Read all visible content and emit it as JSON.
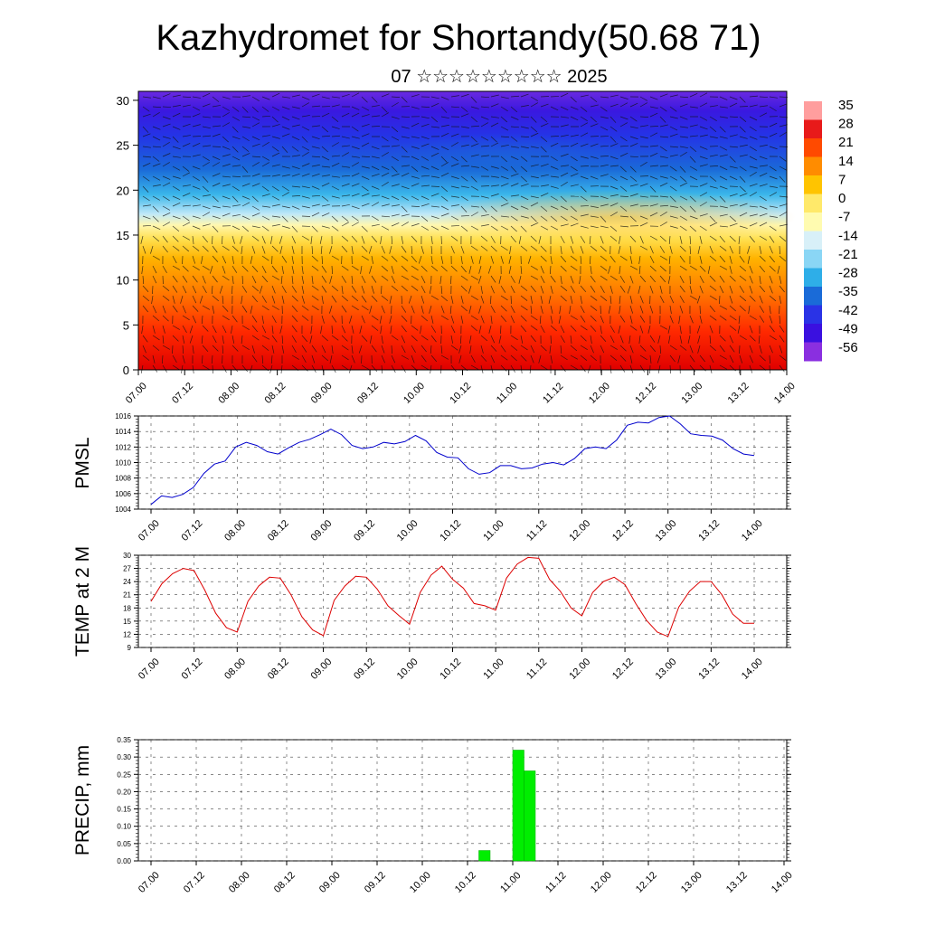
{
  "title": "Kazhydromet for Shortandy(50.68 71)",
  "subtitle": "07 ☆☆☆☆☆☆☆☆☆ 2025",
  "time_labels": [
    "07.00",
    "07.12",
    "08.00",
    "08.12",
    "09.00",
    "09.12",
    "10.00",
    "10.12",
    "11.00",
    "11.12",
    "12.00",
    "12.12",
    "13.00",
    "13.12",
    "14.00"
  ],
  "chart_data": [
    {
      "type": "heatmap",
      "name": "cross-section",
      "y_ticks": [
        "0",
        "5",
        "10",
        "15",
        "20",
        "25",
        "30"
      ],
      "ylim": [
        0,
        31
      ],
      "colorbar_labels": [
        "35",
        "28",
        "21",
        "14",
        "7",
        "0",
        "-7",
        "-14",
        "-21",
        "-28",
        "-35",
        "-42",
        "-49",
        "-56"
      ],
      "colorbar_colors": [
        "#ff9e9e",
        "#e81a1a",
        "#ff4a00",
        "#ff8c00",
        "#ffc400",
        "#ffe96a",
        "#fffbb0",
        "#d8f0f8",
        "#8ad6f5",
        "#2eaee8",
        "#1a6bd8",
        "#2a33e6",
        "#3a10e0",
        "#8a2fe0"
      ],
      "series_values_by_height": [
        {
          "height": 0,
          "temp": 30
        },
        {
          "height": 5,
          "temp": 25
        },
        {
          "height": 10,
          "temp": 12
        },
        {
          "height": 15,
          "temp": 2
        },
        {
          "height": 20,
          "temp": -28
        },
        {
          "height": 25,
          "temp": -50
        },
        {
          "height": 30,
          "temp": -60
        }
      ]
    },
    {
      "type": "line",
      "ylabel": "PMSL",
      "y_ticks": [
        "1004",
        "1006",
        "1008",
        "1010",
        "1012",
        "1014",
        "1016"
      ],
      "ylim": [
        1004,
        1016
      ],
      "color": "#0000cc",
      "values": [
        1004.6,
        1005.7,
        1005.5,
        1005.9,
        1006.8,
        1008.6,
        1009.8,
        1010.2,
        1012,
        1012.6,
        1012.2,
        1011.4,
        1011.1,
        1011.9,
        1012.6,
        1013,
        1013.6,
        1014.3,
        1013.6,
        1012.2,
        1011.8,
        1012,
        1012.6,
        1012.4,
        1012.7,
        1013.5,
        1012.8,
        1011.3,
        1010.7,
        1010.6,
        1009.2,
        1008.5,
        1008.7,
        1009.6,
        1009.6,
        1009.2,
        1009.3,
        1009.8,
        1010,
        1009.7,
        1010.5,
        1011.8,
        1012,
        1011.8,
        1012.9,
        1014.8,
        1015.2,
        1015.1,
        1015.8,
        1016.0,
        1015,
        1013.7,
        1013.5,
        1013.4,
        1012.9,
        1011.8,
        1011.1,
        1010.9
      ]
    },
    {
      "type": "line",
      "ylabel": "TEMP at 2 M",
      "y_ticks": [
        "9",
        "12",
        "15",
        "18",
        "21",
        "24",
        "27",
        "30"
      ],
      "ylim": [
        9,
        30
      ],
      "color": "#dd0000",
      "values": [
        19.5,
        23.5,
        25.8,
        27,
        26.5,
        22,
        16.8,
        13.5,
        12.5,
        19.5,
        23,
        25,
        24.8,
        21,
        16,
        13,
        11.7,
        19.7,
        23,
        25.2,
        25,
        22.3,
        18.5,
        16.3,
        14.3,
        21.6,
        25.5,
        27.5,
        24.5,
        22.5,
        19,
        18.5,
        17.5,
        24.8,
        28,
        29.5,
        29.3,
        24.5,
        21.8,
        18,
        16.2,
        21.5,
        24,
        25,
        23.3,
        19,
        15.2,
        12.5,
        11.5,
        18.2,
        21.8,
        24,
        24,
        21,
        16.6,
        14.5,
        14.5
      ]
    },
    {
      "type": "bar",
      "ylabel": "PRECIP, mm",
      "y_ticks": [
        "0.00",
        "0.05",
        "0.10",
        "0.15",
        "0.20",
        "0.25",
        "0.30",
        "0.35"
      ],
      "ylim": [
        0,
        0.35
      ],
      "color": "#00ee00",
      "bars": [
        {
          "time_index": 29,
          "value": 0.03
        },
        {
          "time_index": 32,
          "value": 0.32
        },
        {
          "time_index": 33,
          "value": 0.26
        }
      ]
    }
  ]
}
